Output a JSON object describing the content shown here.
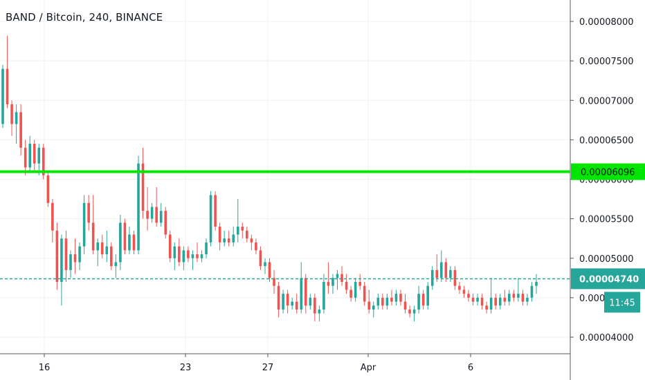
{
  "chart_data": {
    "type": "candlestick",
    "title": "BAND / Bitcoin, 240, BINANCE",
    "x_ticks": [
      "16",
      "23",
      "27",
      "Apr",
      "6"
    ],
    "y_ticks": [
      "0.00008000",
      "0.00007500",
      "0.00007000",
      "0.00006500",
      "0.00006000",
      "0.00005500",
      "0.00005000",
      "0.00004500",
      "0.00004000"
    ],
    "ylim": [
      3.84e-05,
      8.32e-05
    ],
    "grid": true,
    "colors": {
      "up": "#26a69a",
      "down": "#ef5350",
      "horizontal_line": "#00e600",
      "current_price_line": "#26a69a"
    },
    "horizontal_line": {
      "value": 6.096e-05,
      "label": "0.00006096"
    },
    "current_price": {
      "value": 4.74e-05,
      "label": "0.00004740",
      "countdown": "11:45"
    },
    "candles": [
      {
        "o": 6.7,
        "h": 7.45,
        "l": 6.65,
        "c": 7.4
      },
      {
        "o": 7.4,
        "h": 7.82,
        "l": 6.9,
        "c": 6.95
      },
      {
        "o": 6.95,
        "h": 7.0,
        "l": 6.55,
        "c": 6.7
      },
      {
        "o": 6.7,
        "h": 6.95,
        "l": 6.45,
        "c": 6.85
      },
      {
        "o": 6.85,
        "h": 6.95,
        "l": 6.3,
        "c": 6.4
      },
      {
        "o": 6.4,
        "h": 6.5,
        "l": 6.05,
        "c": 6.15
      },
      {
        "o": 6.15,
        "h": 6.55,
        "l": 6.1,
        "c": 6.45
      },
      {
        "o": 6.45,
        "h": 6.5,
        "l": 6.1,
        "c": 6.2
      },
      {
        "o": 6.2,
        "h": 6.45,
        "l": 6.05,
        "c": 6.4
      },
      {
        "o": 6.4,
        "h": 6.45,
        "l": 6.0,
        "c": 6.05
      },
      {
        "o": 6.05,
        "h": 6.1,
        "l": 5.65,
        "c": 5.7
      },
      {
        "o": 5.7,
        "h": 5.75,
        "l": 5.2,
        "c": 5.35
      },
      {
        "o": 5.35,
        "h": 5.45,
        "l": 4.6,
        "c": 4.7
      },
      {
        "o": 4.7,
        "h": 5.3,
        "l": 4.4,
        "c": 5.25
      },
      {
        "o": 5.25,
        "h": 5.35,
        "l": 4.7,
        "c": 4.85
      },
      {
        "o": 4.85,
        "h": 5.1,
        "l": 4.75,
        "c": 5.05
      },
      {
        "o": 5.05,
        "h": 5.25,
        "l": 4.8,
        "c": 4.95
      },
      {
        "o": 4.95,
        "h": 5.2,
        "l": 4.85,
        "c": 5.15
      },
      {
        "o": 5.15,
        "h": 5.8,
        "l": 5.05,
        "c": 5.7
      },
      {
        "o": 5.7,
        "h": 5.8,
        "l": 5.35,
        "c": 5.45
      },
      {
        "o": 5.45,
        "h": 5.8,
        "l": 5.05,
        "c": 5.1
      },
      {
        "o": 5.1,
        "h": 5.25,
        "l": 4.9,
        "c": 5.2
      },
      {
        "o": 5.2,
        "h": 5.3,
        "l": 5.0,
        "c": 5.05
      },
      {
        "o": 5.05,
        "h": 5.35,
        "l": 4.95,
        "c": 5.15
      },
      {
        "o": 5.15,
        "h": 5.2,
        "l": 4.85,
        "c": 4.9
      },
      {
        "o": 4.9,
        "h": 5.05,
        "l": 4.75,
        "c": 4.95
      },
      {
        "o": 4.95,
        "h": 5.55,
        "l": 4.85,
        "c": 5.45
      },
      {
        "o": 5.45,
        "h": 5.5,
        "l": 5.05,
        "c": 5.1
      },
      {
        "o": 5.1,
        "h": 5.4,
        "l": 5.05,
        "c": 5.3
      },
      {
        "o": 5.3,
        "h": 5.35,
        "l": 5.05,
        "c": 5.1
      },
      {
        "o": 5.1,
        "h": 6.3,
        "l": 5.05,
        "c": 6.2
      },
      {
        "o": 6.2,
        "h": 6.4,
        "l": 5.5,
        "c": 5.6
      },
      {
        "o": 5.6,
        "h": 5.9,
        "l": 5.35,
        "c": 5.5
      },
      {
        "o": 5.5,
        "h": 5.7,
        "l": 5.45,
        "c": 5.65
      },
      {
        "o": 5.65,
        "h": 5.9,
        "l": 5.4,
        "c": 5.45
      },
      {
        "o": 5.45,
        "h": 5.7,
        "l": 5.4,
        "c": 5.6
      },
      {
        "o": 5.6,
        "h": 5.65,
        "l": 5.25,
        "c": 5.3
      },
      {
        "o": 5.3,
        "h": 5.35,
        "l": 4.95,
        "c": 5.0
      },
      {
        "o": 5.0,
        "h": 5.2,
        "l": 4.85,
        "c": 5.15
      },
      {
        "o": 5.15,
        "h": 5.25,
        "l": 4.9,
        "c": 4.95
      },
      {
        "o": 4.95,
        "h": 5.15,
        "l": 4.85,
        "c": 5.1
      },
      {
        "o": 5.1,
        "h": 5.15,
        "l": 4.95,
        "c": 5.0
      },
      {
        "o": 5.0,
        "h": 5.1,
        "l": 4.85,
        "c": 5.05
      },
      {
        "o": 5.05,
        "h": 5.2,
        "l": 4.95,
        "c": 5.0
      },
      {
        "o": 5.0,
        "h": 5.1,
        "l": 4.95,
        "c": 5.05
      },
      {
        "o": 5.05,
        "h": 5.25,
        "l": 5.0,
        "c": 5.2
      },
      {
        "o": 5.2,
        "h": 5.85,
        "l": 5.15,
        "c": 5.8
      },
      {
        "o": 5.8,
        "h": 5.85,
        "l": 5.35,
        "c": 5.4
      },
      {
        "o": 5.4,
        "h": 5.45,
        "l": 5.1,
        "c": 5.2
      },
      {
        "o": 5.2,
        "h": 5.35,
        "l": 5.15,
        "c": 5.25
      },
      {
        "o": 5.25,
        "h": 5.35,
        "l": 5.15,
        "c": 5.2
      },
      {
        "o": 5.2,
        "h": 5.4,
        "l": 5.15,
        "c": 5.3
      },
      {
        "o": 5.3,
        "h": 5.75,
        "l": 5.2,
        "c": 5.4
      },
      {
        "o": 5.4,
        "h": 5.45,
        "l": 5.25,
        "c": 5.35
      },
      {
        "o": 5.35,
        "h": 5.4,
        "l": 5.2,
        "c": 5.25
      },
      {
        "o": 5.25,
        "h": 5.3,
        "l": 5.1,
        "c": 5.2
      },
      {
        "o": 5.2,
        "h": 5.25,
        "l": 5.05,
        "c": 5.1
      },
      {
        "o": 5.1,
        "h": 5.15,
        "l": 4.85,
        "c": 4.9
      },
      {
        "o": 4.9,
        "h": 5.0,
        "l": 4.8,
        "c": 4.95
      },
      {
        "o": 4.95,
        "h": 5.0,
        "l": 4.7,
        "c": 4.75
      },
      {
        "o": 4.75,
        "h": 4.85,
        "l": 4.55,
        "c": 4.65
      },
      {
        "o": 4.65,
        "h": 4.7,
        "l": 4.25,
        "c": 4.35
      },
      {
        "o": 4.35,
        "h": 4.6,
        "l": 4.3,
        "c": 4.55
      },
      {
        "o": 4.55,
        "h": 4.6,
        "l": 4.3,
        "c": 4.4
      },
      {
        "o": 4.4,
        "h": 4.5,
        "l": 4.35,
        "c": 4.45
      },
      {
        "o": 4.45,
        "h": 4.55,
        "l": 4.3,
        "c": 4.35
      },
      {
        "o": 4.35,
        "h": 4.95,
        "l": 4.3,
        "c": 4.75
      },
      {
        "o": 4.75,
        "h": 4.8,
        "l": 4.3,
        "c": 4.4
      },
      {
        "o": 4.4,
        "h": 4.55,
        "l": 4.35,
        "c": 4.5
      },
      {
        "o": 4.5,
        "h": 4.55,
        "l": 4.2,
        "c": 4.3
      },
      {
        "o": 4.3,
        "h": 4.4,
        "l": 4.2,
        "c": 4.35
      },
      {
        "o": 4.35,
        "h": 4.8,
        "l": 4.3,
        "c": 4.7
      },
      {
        "o": 4.7,
        "h": 4.95,
        "l": 4.55,
        "c": 4.65
      },
      {
        "o": 4.65,
        "h": 4.8,
        "l": 4.55,
        "c": 4.75
      },
      {
        "o": 4.75,
        "h": 4.85,
        "l": 4.6,
        "c": 4.8
      },
      {
        "o": 4.8,
        "h": 4.9,
        "l": 4.65,
        "c": 4.7
      },
      {
        "o": 4.7,
        "h": 4.8,
        "l": 4.55,
        "c": 4.6
      },
      {
        "o": 4.6,
        "h": 4.65,
        "l": 4.45,
        "c": 4.5
      },
      {
        "o": 4.5,
        "h": 4.75,
        "l": 4.45,
        "c": 4.7
      },
      {
        "o": 4.7,
        "h": 4.8,
        "l": 4.6,
        "c": 4.65
      },
      {
        "o": 4.65,
        "h": 4.7,
        "l": 4.4,
        "c": 4.45
      },
      {
        "o": 4.45,
        "h": 4.6,
        "l": 4.3,
        "c": 4.35
      },
      {
        "o": 4.35,
        "h": 4.45,
        "l": 4.25,
        "c": 4.4
      },
      {
        "o": 4.4,
        "h": 4.55,
        "l": 4.35,
        "c": 4.5
      },
      {
        "o": 4.5,
        "h": 4.55,
        "l": 4.35,
        "c": 4.4
      },
      {
        "o": 4.4,
        "h": 4.55,
        "l": 4.35,
        "c": 4.5
      },
      {
        "o": 4.5,
        "h": 4.6,
        "l": 4.4,
        "c": 4.45
      },
      {
        "o": 4.45,
        "h": 4.6,
        "l": 4.4,
        "c": 4.55
      },
      {
        "o": 4.55,
        "h": 4.6,
        "l": 4.4,
        "c": 4.45
      },
      {
        "o": 4.45,
        "h": 4.55,
        "l": 4.3,
        "c": 4.35
      },
      {
        "o": 4.35,
        "h": 4.4,
        "l": 4.25,
        "c": 4.3
      },
      {
        "o": 4.3,
        "h": 4.4,
        "l": 4.2,
        "c": 4.35
      },
      {
        "o": 4.35,
        "h": 4.65,
        "l": 4.3,
        "c": 4.55
      },
      {
        "o": 4.55,
        "h": 4.6,
        "l": 4.35,
        "c": 4.4
      },
      {
        "o": 4.4,
        "h": 4.7,
        "l": 4.35,
        "c": 4.65
      },
      {
        "o": 4.65,
        "h": 4.9,
        "l": 4.6,
        "c": 4.85
      },
      {
        "o": 4.85,
        "h": 5.05,
        "l": 4.7,
        "c": 4.75
      },
      {
        "o": 4.75,
        "h": 5.1,
        "l": 4.7,
        "c": 4.95
      },
      {
        "o": 4.95,
        "h": 5.0,
        "l": 4.7,
        "c": 4.75
      },
      {
        "o": 4.75,
        "h": 4.9,
        "l": 4.7,
        "c": 4.85
      },
      {
        "o": 4.85,
        "h": 4.9,
        "l": 4.6,
        "c": 4.65
      },
      {
        "o": 4.65,
        "h": 4.7,
        "l": 4.55,
        "c": 4.6
      },
      {
        "o": 4.6,
        "h": 4.65,
        "l": 4.5,
        "c": 4.55
      },
      {
        "o": 4.55,
        "h": 4.6,
        "l": 4.45,
        "c": 4.5
      },
      {
        "o": 4.5,
        "h": 4.55,
        "l": 4.4,
        "c": 4.45
      },
      {
        "o": 4.45,
        "h": 4.55,
        "l": 4.4,
        "c": 4.5
      },
      {
        "o": 4.5,
        "h": 4.55,
        "l": 4.35,
        "c": 4.4
      },
      {
        "o": 4.4,
        "h": 4.45,
        "l": 4.3,
        "c": 4.35
      },
      {
        "o": 4.35,
        "h": 4.75,
        "l": 4.3,
        "c": 4.5
      },
      {
        "o": 4.5,
        "h": 4.55,
        "l": 4.35,
        "c": 4.4
      },
      {
        "o": 4.4,
        "h": 4.55,
        "l": 4.35,
        "c": 4.5
      },
      {
        "o": 4.5,
        "h": 4.6,
        "l": 4.4,
        "c": 4.45
      },
      {
        "o": 4.45,
        "h": 4.6,
        "l": 4.4,
        "c": 4.55
      },
      {
        "o": 4.55,
        "h": 4.6,
        "l": 4.45,
        "c": 4.5
      },
      {
        "o": 4.5,
        "h": 4.75,
        "l": 4.45,
        "c": 4.55
      },
      {
        "o": 4.55,
        "h": 4.6,
        "l": 4.4,
        "c": 4.45
      },
      {
        "o": 4.45,
        "h": 4.55,
        "l": 4.4,
        "c": 4.5
      },
      {
        "o": 4.5,
        "h": 4.7,
        "l": 4.45,
        "c": 4.65
      },
      {
        "o": 4.65,
        "h": 4.8,
        "l": 4.55,
        "c": 4.7
      }
    ]
  }
}
